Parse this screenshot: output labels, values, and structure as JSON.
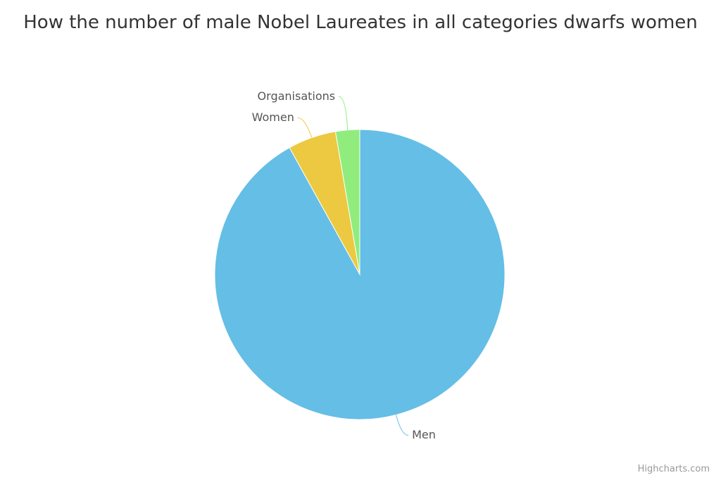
{
  "chart_data": {
    "type": "pie",
    "title": "How the number of male Nobel Laureates in all categories dwarfs women",
    "categories": [
      "Men",
      "Women",
      "Organisations"
    ],
    "values": [
      822,
      48,
      24
    ],
    "colors": [
      "#65bee5",
      "#ecc940",
      "#90ed7d"
    ],
    "credits": "Highcharts.com"
  }
}
